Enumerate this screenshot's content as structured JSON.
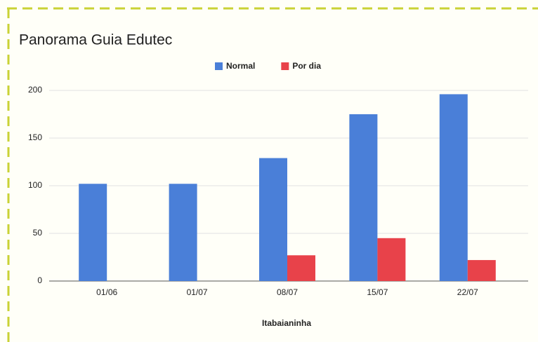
{
  "chart_data": {
    "type": "bar",
    "title": "Panorama Guia Edutec",
    "x_label": "Itabaianinha",
    "categories": [
      "01/06",
      "01/07",
      "08/07",
      "15/07",
      "22/07"
    ],
    "series": [
      {
        "name": "Normal",
        "color": "#4a7fd8",
        "values": [
          102,
          102,
          129,
          175,
          196
        ]
      },
      {
        "name": "Por dia",
        "color": "#e8424a",
        "values": [
          null,
          null,
          27,
          45,
          22
        ]
      }
    ],
    "ylim": [
      0,
      200
    ],
    "yticks": [
      0,
      50,
      100,
      150,
      200
    ],
    "grid": true,
    "legend": "top"
  }
}
